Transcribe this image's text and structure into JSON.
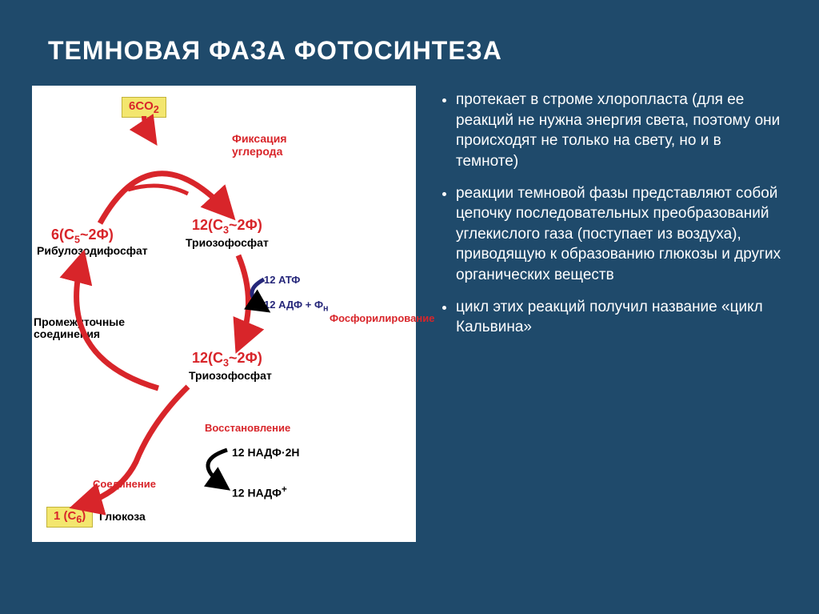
{
  "title": "ТЕМНОВАЯ ФАЗА ФОТОСИНТЕЗА",
  "bullets": [
    "протекает в строме хлоропласта (для ее реакций не нужна энергия света, поэтому они происходят не только на свету, но и в темноте)",
    "реакции темновой фазы представляют собой цепочку последовательных преобразований углекислого газа (поступает из воздуха), приводящую к образованию глюкозы и других органических веществ",
    " цикл этих реакций получил название «цикл Кальвина»"
  ],
  "diagram": {
    "co2": "6CO₂",
    "fixation": "Фиксация углерода",
    "rbdp_formula": "6(C₅~2Ф)",
    "rbdp_label": "Рибулозодифосфат",
    "tp1_formula": "12(C₃~2Ф)",
    "tp1_label": "Триозофосфат",
    "atp": "12 АТФ",
    "adp": "12 АДФ + Фн",
    "phosphor": "Фосфорилирование",
    "intermediate": "Промежуточные соединения",
    "tp2_formula": "12(C₃~2Ф)",
    "tp2_label": "Триозофосфат",
    "restore": "Восстановление",
    "nadph": "12 НАДФ·2H",
    "nadp": "12 НАДФ⁺",
    "join": "Соединение",
    "glucose_num": "1 (C₆)",
    "glucose": "Глюкоза",
    "colors": {
      "bg": "#1f4a6b",
      "panel": "#ffffff",
      "text_white": "#ffffff",
      "red": "#d8252a",
      "navy": "#26277a",
      "highlight_bg": "#f3e66e",
      "black": "#000000"
    },
    "arrow_stroke_width": 6,
    "title_fontsize": 32,
    "bullet_fontsize": 19
  }
}
